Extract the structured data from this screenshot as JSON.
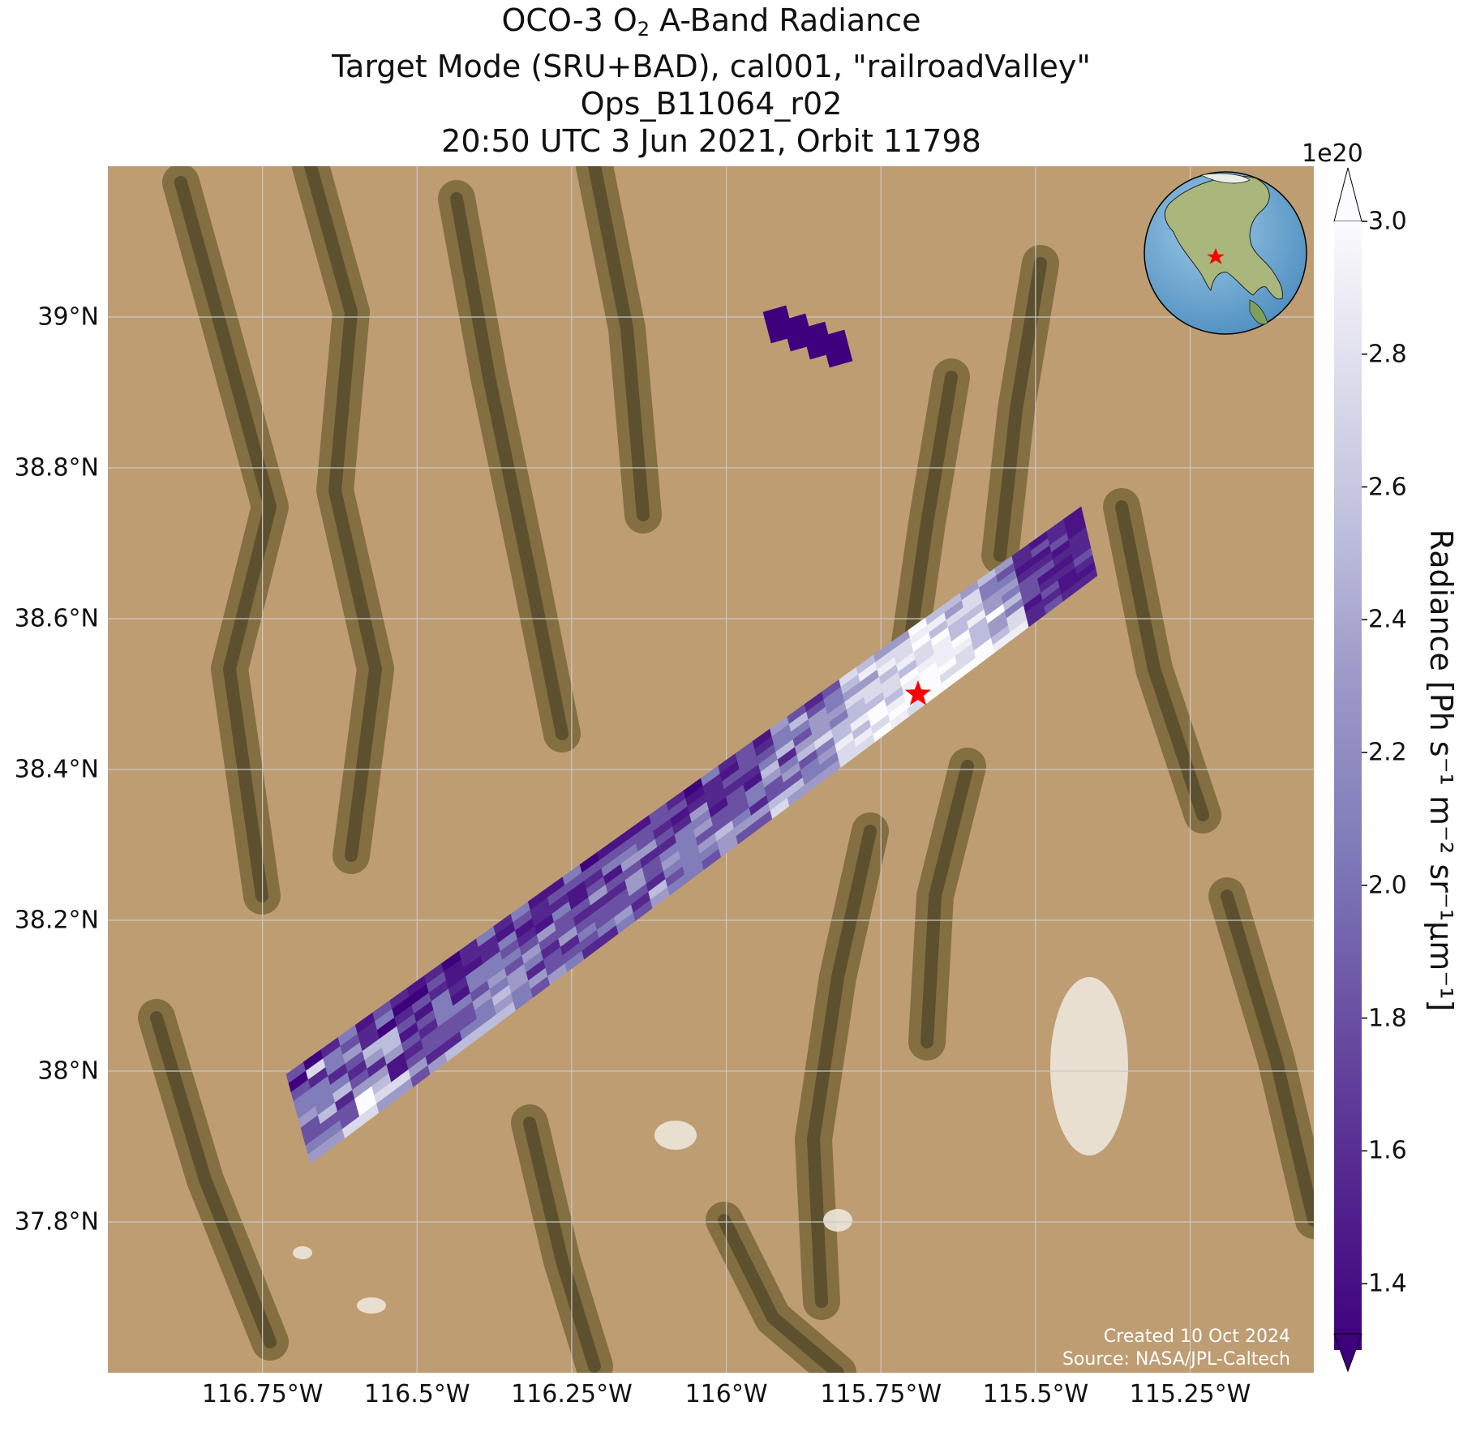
{
  "title": {
    "line1_pre": "OCO-3 O",
    "line1_sub": "2",
    "line1_post": " A-Band Radiance",
    "line2": "Target Mode (SRU+BAD), cal001, \"railroadValley\"",
    "line3": "Ops_B11064_r02",
    "line4": "20:50 UTC 3 Jun 2021, Orbit 11798"
  },
  "map": {
    "extent": {
      "lon_min": -117.0,
      "lon_max": -115.05,
      "lat_min": 37.6,
      "lat_max": 39.2
    },
    "lat_ticks": [
      {
        "value": 39.0,
        "label": "39°N"
      },
      {
        "value": 38.8,
        "label": "38.8°N"
      },
      {
        "value": 38.6,
        "label": "38.6°N"
      },
      {
        "value": 38.4,
        "label": "38.4°N"
      },
      {
        "value": 38.2,
        "label": "38.2°N"
      },
      {
        "value": 38.0,
        "label": "38°N"
      },
      {
        "value": 37.8,
        "label": "37.8°N"
      }
    ],
    "lon_ticks": [
      {
        "value": -116.75,
        "label": "116.75°W"
      },
      {
        "value": -116.5,
        "label": "116.5°W"
      },
      {
        "value": -116.25,
        "label": "116.25°W"
      },
      {
        "value": -116.0,
        "label": "116°W"
      },
      {
        "value": -115.75,
        "label": "115.75°W"
      },
      {
        "value": -115.5,
        "label": "115.5°W"
      },
      {
        "value": -115.25,
        "label": "115.25°W"
      }
    ],
    "target_marker": {
      "lon": -115.69,
      "lat": 38.5,
      "color": "#ff0000",
      "icon": "star-icon"
    },
    "inset_globe": {
      "icon": "globe-icon",
      "marker_color": "#ff0000"
    },
    "background": "satellite-imagery",
    "grid": true
  },
  "colorbar": {
    "colormap": "Purples_r",
    "min": 1.3,
    "max": 3.0,
    "extend": "both",
    "exponent_label": "1e20",
    "ticks": [
      {
        "value": 3.0,
        "label": "3.0"
      },
      {
        "value": 2.8,
        "label": "2.8"
      },
      {
        "value": 2.6,
        "label": "2.6"
      },
      {
        "value": 2.4,
        "label": "2.4"
      },
      {
        "value": 2.2,
        "label": "2.2"
      },
      {
        "value": 2.0,
        "label": "2.0"
      },
      {
        "value": 1.8,
        "label": "1.8"
      },
      {
        "value": 1.6,
        "label": "1.6"
      },
      {
        "value": 1.4,
        "label": "1.4"
      }
    ],
    "label": "Radiance [Ph s⁻¹ m⁻² sr⁻¹μm⁻¹]"
  },
  "credits": {
    "created": "Created 10 Oct 2024",
    "source": "Source: NASA/JPL-Caltech"
  }
}
